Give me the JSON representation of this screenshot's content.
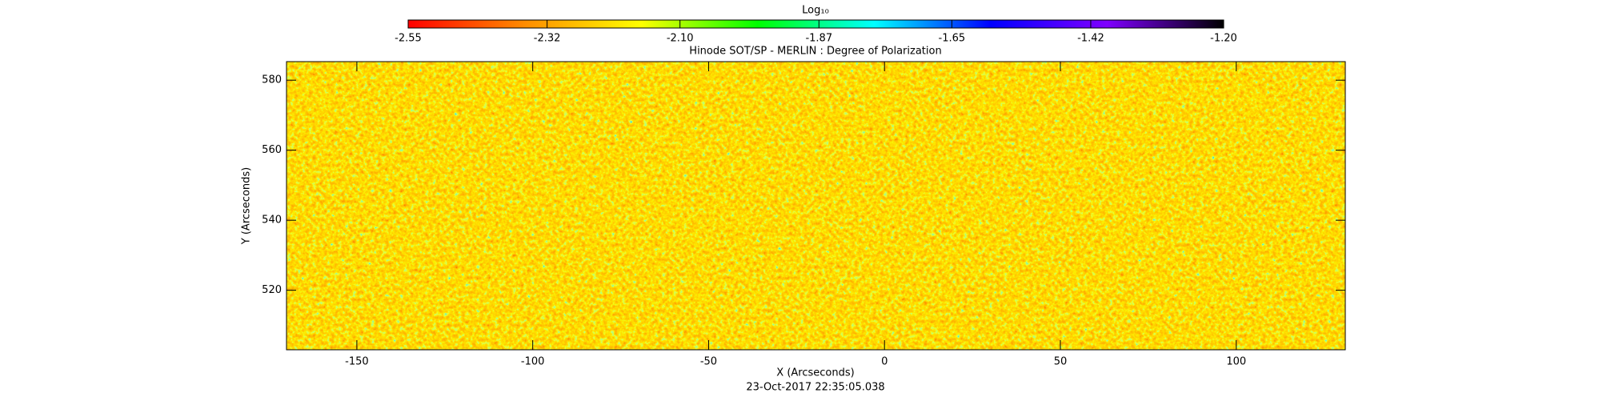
{
  "chart_data": {
    "type": "heatmap",
    "title": "Hinode SOT/SP - MERLIN : Degree of Polarization",
    "xlabel": "X (Arcseconds)",
    "ylabel": "Y (Arcseconds)",
    "footer": "23-Oct-2017 22:35:05.038",
    "xlim": [
      -170,
      131
    ],
    "ylim": [
      503,
      585.3
    ],
    "xticks": [
      -150,
      -100,
      -50,
      0,
      50,
      100
    ],
    "yticks": [
      520,
      540,
      560,
      580
    ],
    "colorbar": {
      "label": "Log₁₀",
      "lim": [
        -2.55,
        -1.2
      ],
      "colors": [
        "#ff0000",
        "#ff8c00",
        "#ffff00",
        "#00ff00",
        "#00ffff",
        "#0000ff",
        "#7f00ff",
        "#000000"
      ],
      "ticks": [
        -2.55,
        -2.32,
        {
          "value": -2.1,
          "label": "-2.10"
        },
        -1.87,
        -1.65,
        -1.42,
        {
          "value": -1.2,
          "label": "-1.20"
        }
      ]
    }
  }
}
